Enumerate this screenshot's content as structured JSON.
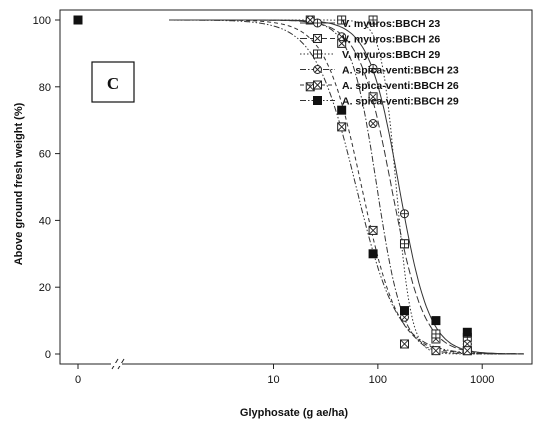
{
  "panel_label": "C",
  "chart_data": {
    "type": "scatter",
    "xlabel": "Glyphosate (g ae/ha)",
    "ylabel": "Above ground fresh weight (%)",
    "x_scale": "log",
    "x_axis_break": true,
    "xlim": [
      0.6,
      3000
    ],
    "ylim": [
      0,
      100
    ],
    "x_ticks": [
      {
        "value": 0,
        "label": "0"
      },
      {
        "value": 10,
        "label": "10"
      },
      {
        "value": 100,
        "label": "100"
      },
      {
        "value": 1000,
        "label": "1000"
      }
    ],
    "y_ticks": [
      0,
      20,
      40,
      60,
      80,
      100
    ],
    "grid": false,
    "legend_position": "top-right",
    "series": [
      {
        "name": "V. myuros:BBCH 23",
        "marker": "circle-plus",
        "line": "solid",
        "points": [
          {
            "x": 0,
            "y": 100
          },
          {
            "x": 90,
            "y": 85.5
          },
          {
            "x": 180,
            "y": 42
          },
          {
            "x": 360,
            "y": 6
          },
          {
            "x": 720,
            "y": 3
          }
        ],
        "curve": {
          "d": 3.8,
          "e": 160,
          "b": 3.0
        }
      },
      {
        "name": "V. myuros:BBCH 26",
        "marker": "square-x",
        "line": "long-dash",
        "points": [
          {
            "x": 0,
            "y": 100
          },
          {
            "x": 45,
            "y": 93
          },
          {
            "x": 90,
            "y": 77
          },
          {
            "x": 180,
            "y": 33
          },
          {
            "x": 360,
            "y": 4.5
          },
          {
            "x": 720,
            "y": 1
          }
        ],
        "curve": {
          "d": 3.8,
          "e": 135,
          "b": 2.8
        }
      },
      {
        "name": "V. myuros:BBCH 29",
        "marker": "square-plus",
        "line": "dotted",
        "points": [
          {
            "x": 0,
            "y": 100
          },
          {
            "x": 22.5,
            "y": 100
          },
          {
            "x": 45,
            "y": 100
          },
          {
            "x": 90,
            "y": 100
          },
          {
            "x": 180,
            "y": 33
          },
          {
            "x": 360,
            "y": 6
          },
          {
            "x": 720,
            "y": 5
          }
        ],
        "curve": {
          "d": 5.0,
          "e": 150,
          "b": 6.0
        }
      },
      {
        "name": "A. spica-venti:BBCH 23",
        "marker": "circle-x",
        "line": "dash-dot",
        "points": [
          {
            "x": 0,
            "y": 100
          },
          {
            "x": 22.5,
            "y": 100
          },
          {
            "x": 45,
            "y": 95
          },
          {
            "x": 90,
            "y": 69
          },
          {
            "x": 180,
            "y": 11
          },
          {
            "x": 360,
            "y": 1
          },
          {
            "x": 720,
            "y": 3
          }
        ],
        "curve": {
          "d": 2.0,
          "e": 98,
          "b": 3.5
        }
      },
      {
        "name": "A. spica-venti:BBCH 26",
        "marker": "square-diag",
        "line": "dashed",
        "points": [
          {
            "x": 0,
            "y": 100
          },
          {
            "x": 22.5,
            "y": 80
          },
          {
            "x": 45,
            "y": 68
          },
          {
            "x": 90,
            "y": 37
          },
          {
            "x": 180,
            "y": 3
          },
          {
            "x": 360,
            "y": 1
          },
          {
            "x": 720,
            "y": 1
          }
        ],
        "curve": {
          "d": 4.0,
          "e": 70,
          "b": 2.5
        }
      },
      {
        "name": "A. spica-venti:BBCH 29",
        "marker": "filled-square",
        "line": "dash-dot-dot",
        "points": [
          {
            "x": 0,
            "y": 100
          },
          {
            "x": 45,
            "y": 73
          },
          {
            "x": 90,
            "y": 30
          },
          {
            "x": 180,
            "y": 13
          },
          {
            "x": 360,
            "y": 10
          },
          {
            "x": 720,
            "y": 6.5
          }
        ],
        "curve": {
          "d": 2.0,
          "e": 62,
          "b": 2.2
        }
      }
    ]
  }
}
